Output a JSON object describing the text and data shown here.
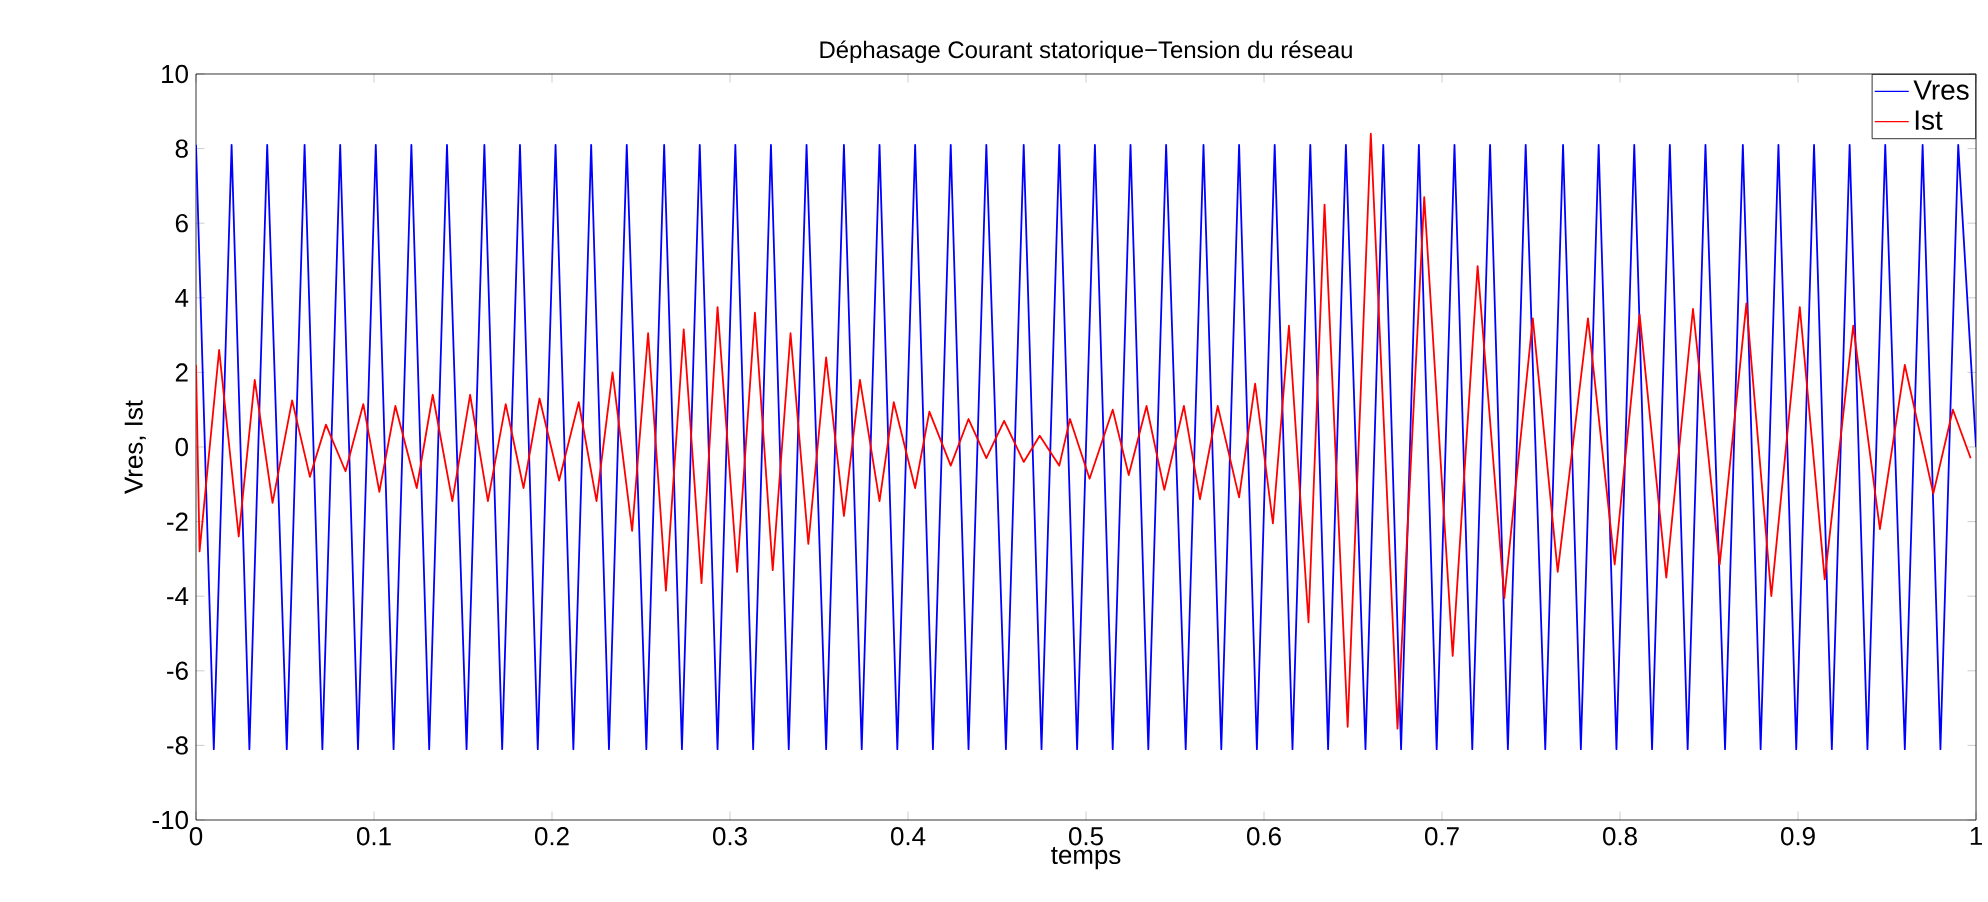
{
  "chart_data": {
    "type": "line",
    "title": "Déphasage Courant statorique−Tension du réseau",
    "xlabel": "temps",
    "ylabel": "Vres, Ist",
    "xlim": [
      0,
      1
    ],
    "ylim": [
      -10,
      10
    ],
    "xticks": [
      0,
      0.1,
      0.2,
      0.3,
      0.4,
      0.5,
      0.6,
      0.7,
      0.8,
      0.9,
      1
    ],
    "yticks": [
      -10,
      -8,
      -6,
      -4,
      -2,
      0,
      2,
      4,
      6,
      8,
      10
    ],
    "grid": false,
    "legend": "top right",
    "marker": "none",
    "line_style": "solid",
    "series": [
      {
        "name": "Vres",
        "color": "#0000ff",
        "x": [
          0,
          0.01,
          0.02,
          0.03,
          0.04,
          0.051,
          0.061,
          0.071,
          0.081,
          0.091,
          0.101,
          0.111,
          0.121,
          0.131,
          0.141,
          0.152,
          0.162,
          0.172,
          0.182,
          0.192,
          0.202,
          0.212,
          0.222,
          0.232,
          0.242,
          0.253,
          0.263,
          0.273,
          0.283,
          0.293,
          0.303,
          0.313,
          0.323,
          0.333,
          0.343,
          0.354,
          0.364,
          0.374,
          0.384,
          0.394,
          0.404,
          0.414,
          0.424,
          0.434,
          0.444,
          0.455,
          0.465,
          0.475,
          0.485,
          0.495,
          0.505,
          0.515,
          0.525,
          0.535,
          0.545,
          0.556,
          0.566,
          0.576,
          0.586,
          0.596,
          0.606,
          0.616,
          0.626,
          0.636,
          0.646,
          0.657,
          0.667,
          0.677,
          0.687,
          0.697,
          0.707,
          0.717,
          0.727,
          0.737,
          0.747,
          0.758,
          0.768,
          0.778,
          0.788,
          0.798,
          0.808,
          0.818,
          0.828,
          0.838,
          0.848,
          0.859,
          0.869,
          0.879,
          0.889,
          0.899,
          0.909,
          0.919,
          0.929,
          0.939,
          0.949,
          0.96,
          0.97,
          0.98,
          0.99,
          1.0
        ],
        "values": [
          8.1,
          -8.1,
          8.1,
          -8.1,
          8.1,
          -8.1,
          8.1,
          -8.1,
          8.1,
          -8.1,
          8.1,
          -8.1,
          8.1,
          -8.1,
          8.1,
          -8.1,
          8.1,
          -8.1,
          8.1,
          -8.1,
          8.1,
          -8.1,
          8.1,
          -8.1,
          8.1,
          -8.1,
          8.1,
          -8.1,
          8.1,
          -8.1,
          8.1,
          -8.1,
          8.1,
          -8.1,
          8.1,
          -8.1,
          8.1,
          -8.1,
          8.1,
          -8.1,
          8.1,
          -8.1,
          8.1,
          -8.1,
          8.1,
          -8.1,
          8.1,
          -8.1,
          8.1,
          -8.1,
          8.1,
          -8.1,
          8.1,
          -8.1,
          8.1,
          -8.1,
          8.1,
          -8.1,
          8.1,
          -8.1,
          8.1,
          -8.1,
          8.1,
          -8.1,
          8.1,
          -8.1,
          8.1,
          -8.1,
          8.1,
          -8.1,
          8.1,
          -8.1,
          8.1,
          -8.1,
          8.1,
          -8.1,
          8.1,
          -8.1,
          8.1,
          -8.1,
          8.1,
          -8.1,
          8.1,
          -8.1,
          8.1,
          -8.1,
          8.1,
          -8.1,
          8.1,
          -8.1,
          8.1,
          -8.1,
          8.1,
          -8.1,
          8.1,
          -8.1,
          8.1,
          -8.1,
          8.1,
          0
        ]
      },
      {
        "name": "Ist",
        "color": "#ff0000",
        "x": [
          0,
          0.002,
          0.013,
          0.024,
          0.033,
          0.043,
          0.054,
          0.064,
          0.073,
          0.084,
          0.094,
          0.103,
          0.112,
          0.124,
          0.133,
          0.144,
          0.154,
          0.164,
          0.174,
          0.184,
          0.193,
          0.204,
          0.215,
          0.225,
          0.234,
          0.245,
          0.254,
          0.264,
          0.274,
          0.284,
          0.293,
          0.304,
          0.314,
          0.324,
          0.334,
          0.344,
          0.354,
          0.364,
          0.373,
          0.384,
          0.392,
          0.404,
          0.412,
          0.424,
          0.434,
          0.444,
          0.454,
          0.465,
          0.474,
          0.485,
          0.491,
          0.502,
          0.515,
          0.524,
          0.534,
          0.544,
          0.555,
          0.564,
          0.574,
          0.586,
          0.595,
          0.605,
          0.614,
          0.625,
          0.634,
          0.647,
          0.66,
          0.675,
          0.69,
          0.706,
          0.72,
          0.735,
          0.751,
          0.765,
          0.782,
          0.797,
          0.811,
          0.826,
          0.841,
          0.856,
          0.871,
          0.885,
          0.901,
          0.915,
          0.931,
          0.946,
          0.96,
          0.976,
          0.987,
          0.997
        ],
        "values": [
          2.2,
          -2.8,
          2.6,
          -2.4,
          1.8,
          -1.5,
          1.25,
          -0.8,
          0.6,
          -0.65,
          1.15,
          -1.2,
          1.1,
          -1.1,
          1.4,
          -1.45,
          1.4,
          -1.45,
          1.15,
          -1.1,
          1.3,
          -0.9,
          1.2,
          -1.45,
          2.0,
          -2.25,
          3.05,
          -3.85,
          3.15,
          -3.65,
          3.75,
          -3.35,
          3.6,
          -3.3,
          3.05,
          -2.6,
          2.4,
          -1.85,
          1.8,
          -1.45,
          1.2,
          -1.1,
          0.95,
          -0.5,
          0.75,
          -0.3,
          0.7,
          -0.4,
          0.3,
          -0.5,
          0.75,
          -0.85,
          1.0,
          -0.75,
          1.1,
          -1.15,
          1.1,
          -1.4,
          1.1,
          -1.35,
          1.7,
          -2.05,
          3.25,
          -4.7,
          6.5,
          -7.5,
          8.4,
          -7.55,
          6.7,
          -5.6,
          4.85,
          -4.05,
          3.45,
          -3.35,
          3.45,
          -3.15,
          3.55,
          -3.5,
          3.7,
          -3.15,
          3.85,
          -4.0,
          3.75,
          -3.55,
          3.25,
          -2.2,
          2.2,
          -1.25,
          1.0,
          -0.3
        ]
      }
    ]
  }
}
